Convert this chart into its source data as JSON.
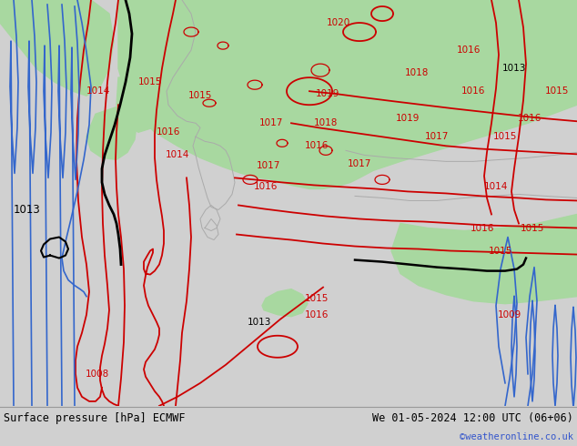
{
  "title_left": "Surface pressure [hPa] ECMWF",
  "title_right": "We 01-05-2024 12:00 UTC (06+06)",
  "credit": "©weatheronline.co.uk",
  "bg_color": "#d0d0d0",
  "map_bg": "#d0d0d0",
  "green_fill": "#a8d8a0",
  "contour_color_red": "#cc0000",
  "contour_color_black": "#000000",
  "contour_color_blue": "#3366cc",
  "contour_color_gray": "#999999",
  "bottom_bar_color": "#d8d8d8",
  "figsize": [
    6.34,
    4.9
  ],
  "dpi": 100
}
